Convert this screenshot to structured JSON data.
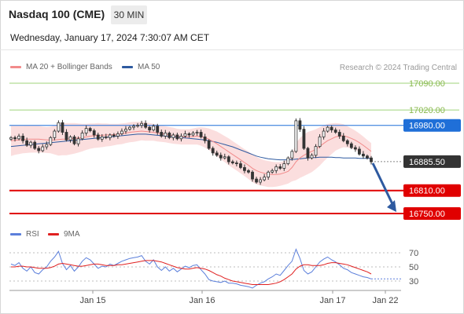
{
  "header": {
    "instrument": "Nasdaq 100 (CME)",
    "timeframe": "30 MIN",
    "datetime": "Wednesday, January 17, 2024 7:30:07 AM CET"
  },
  "legend": {
    "ma20": "MA 20 + Bollinger Bands",
    "ma50": "MA 50",
    "credit": "Research © 2024 Trading Central",
    "rsi": "RSI",
    "ma9": "9MA"
  },
  "colors": {
    "ma20": "#f28b8b",
    "ma50": "#2e5aa0",
    "band_fill": "#fbdada",
    "candle": "#333333",
    "resistance_green": "#9fd37a",
    "pivot_blue": "#1f6fd8",
    "support_red": "#e00000",
    "current_price": "#333333",
    "arrow": "#2e5aa0",
    "rsi": "#5b7fdb",
    "ma9": "#e02020"
  },
  "chart_data": [
    {
      "type": "candlestick",
      "x_ticks": [
        "Jan 15",
        "Jan 16",
        "Jan 17",
        "Jan 22"
      ],
      "ylim": [
        16735,
        17100
      ],
      "levels": [
        {
          "value": 17090.0,
          "label": "17090.00",
          "kind": "resistance"
        },
        {
          "value": 17020.0,
          "label": "17020.00",
          "kind": "resistance"
        },
        {
          "value": 16980.0,
          "label": "16980.00",
          "kind": "pivot"
        },
        {
          "value": 16885.5,
          "label": "16885.50",
          "kind": "current"
        },
        {
          "value": 16810.0,
          "label": "16810.00",
          "kind": "support"
        },
        {
          "value": 16750.0,
          "label": "16750.00",
          "kind": "support"
        }
      ],
      "closes": [
        16948,
        16945,
        16952,
        16940,
        16928,
        16936,
        16920,
        16914,
        16924,
        16930,
        16948,
        16965,
        16987,
        16962,
        16942,
        16950,
        16932,
        16945,
        16960,
        16972,
        16966,
        16955,
        16944,
        16950,
        16948,
        16955,
        16952,
        16958,
        16965,
        16970,
        16975,
        16978,
        16980,
        16985,
        16975,
        16968,
        16978,
        16962,
        16952,
        16960,
        16948,
        16955,
        16945,
        16952,
        16958,
        16955,
        16960,
        16962,
        16950,
        16940,
        16920,
        16908,
        16902,
        16895,
        16898,
        16885,
        16882,
        16880,
        16870,
        16862,
        16858,
        16840,
        16832,
        16838,
        16845,
        16858,
        16862,
        16872,
        16868,
        16880,
        16895,
        16912,
        16992,
        16970,
        16920,
        16895,
        16902,
        16925,
        16950,
        16965,
        16975,
        16968,
        16962,
        16952,
        16940,
        16932,
        16922,
        16918,
        16905,
        16900,
        16895,
        16885
      ],
      "ma20": [
        16940,
        16941,
        16942,
        16943,
        16944,
        16944,
        16944,
        16944,
        16943,
        16942,
        16942,
        16942,
        16943,
        16944,
        16944,
        16945,
        16946,
        16947,
        16948,
        16950,
        16952,
        16953,
        16954,
        16954,
        16955,
        16955,
        16956,
        16957,
        16958,
        16960,
        16962,
        16963,
        16964,
        16965,
        16964,
        16963,
        16962,
        16960,
        16958,
        16957,
        16955,
        16953,
        16951,
        16950,
        16950,
        16950,
        16951,
        16952,
        16951,
        16948,
        16944,
        16938,
        16932,
        16925,
        16918,
        16911,
        16904,
        16897,
        16890,
        16883,
        16876,
        16868,
        16862,
        16858,
        16855,
        16853,
        16852,
        16852,
        16853,
        16856,
        16860,
        16870,
        16885,
        16895,
        16902,
        16908,
        16912,
        16918,
        16925,
        16933,
        16940,
        16945,
        16950,
        16952,
        16953,
        16950,
        16946,
        16941,
        16935,
        16928,
        16920,
        16912
      ],
      "band_half_width": [
        40,
        38,
        37,
        36,
        36,
        35,
        35,
        35,
        34,
        34,
        35,
        38,
        42,
        42,
        42,
        41,
        40,
        38,
        36,
        34,
        33,
        32,
        32,
        31,
        30,
        29,
        28,
        27,
        27,
        26,
        26,
        26,
        25,
        24,
        24,
        23,
        22,
        22,
        21,
        21,
        21,
        21,
        20,
        20,
        20,
        20,
        21,
        22,
        24,
        26,
        28,
        30,
        32,
        33,
        34,
        35,
        35,
        35,
        35,
        35,
        36,
        36,
        36,
        35,
        34,
        34,
        33,
        32,
        31,
        31,
        32,
        36,
        48,
        52,
        54,
        55,
        54,
        52,
        50,
        47,
        44,
        40,
        36,
        33,
        30,
        28,
        26,
        25,
        24,
        23,
        22,
        22
      ],
      "ma50": [
        16925,
        16926,
        16927,
        16928,
        16929,
        16930,
        16931,
        16932,
        16933,
        16934,
        16935,
        16936,
        16937,
        16938,
        16939,
        16940,
        16941,
        16942,
        16943,
        16944,
        16945,
        16946,
        16947,
        16948,
        16949,
        16950,
        16951,
        16952,
        16953,
        16954,
        16955,
        16956,
        16957,
        16957,
        16957,
        16956,
        16955,
        16954,
        16953,
        16952,
        16951,
        16950,
        16949,
        16948,
        16947,
        16946,
        16945,
        16944,
        16943,
        16942,
        16940,
        16938,
        16936,
        16933,
        16930,
        16927,
        16924,
        16920,
        16916,
        16912,
        16908,
        16904,
        16900,
        16897,
        16895,
        16893,
        16892,
        16891,
        16890,
        16890,
        16890,
        16891,
        16892,
        16893,
        16894,
        16895,
        16896,
        16896,
        16897,
        16897,
        16897,
        16897,
        16896,
        16896,
        16895,
        16895,
        16895,
        16895,
        16894,
        16894,
        16894,
        16894
      ]
    },
    {
      "type": "line",
      "yticks": [
        70,
        50,
        30
      ],
      "ylim": [
        20,
        80
      ],
      "series": [
        {
          "name": "RSI",
          "values": [
            54,
            52,
            56,
            48,
            44,
            50,
            42,
            40,
            46,
            50,
            58,
            64,
            72,
            55,
            46,
            52,
            44,
            50,
            58,
            63,
            60,
            54,
            48,
            51,
            50,
            54,
            52,
            55,
            58,
            60,
            62,
            63,
            64,
            66,
            58,
            54,
            60,
            50,
            45,
            50,
            44,
            48,
            43,
            47,
            51,
            49,
            52,
            53,
            46,
            40,
            32,
            30,
            29,
            28,
            30,
            27,
            27,
            26,
            24,
            23,
            22,
            20,
            24,
            27,
            29,
            33,
            36,
            40,
            38,
            45,
            52,
            58,
            75,
            62,
            45,
            40,
            43,
            50,
            57,
            61,
            64,
            60,
            57,
            53,
            48,
            46,
            42,
            40,
            38,
            36,
            35,
            33
          ]
        },
        {
          "name": "9MA",
          "values": [
            50,
            50,
            51,
            51,
            50,
            50,
            49,
            48,
            48,
            48,
            49,
            51,
            54,
            55,
            54,
            53,
            52,
            51,
            51,
            52,
            53,
            54,
            54,
            53,
            52,
            52,
            52,
            53,
            53,
            54,
            55,
            56,
            57,
            58,
            59,
            59,
            59,
            58,
            57,
            55,
            53,
            51,
            49,
            48,
            47,
            47,
            48,
            49,
            48,
            47,
            45,
            42,
            39,
            37,
            34,
            32,
            30,
            29,
            28,
            27,
            26,
            25,
            25,
            25,
            25,
            25,
            26,
            27,
            29,
            32,
            36,
            40,
            47,
            51,
            53,
            53,
            52,
            52,
            52,
            53,
            55,
            56,
            56,
            55,
            54,
            53,
            51,
            49,
            47,
            45,
            43,
            40
          ]
        }
      ]
    }
  ]
}
